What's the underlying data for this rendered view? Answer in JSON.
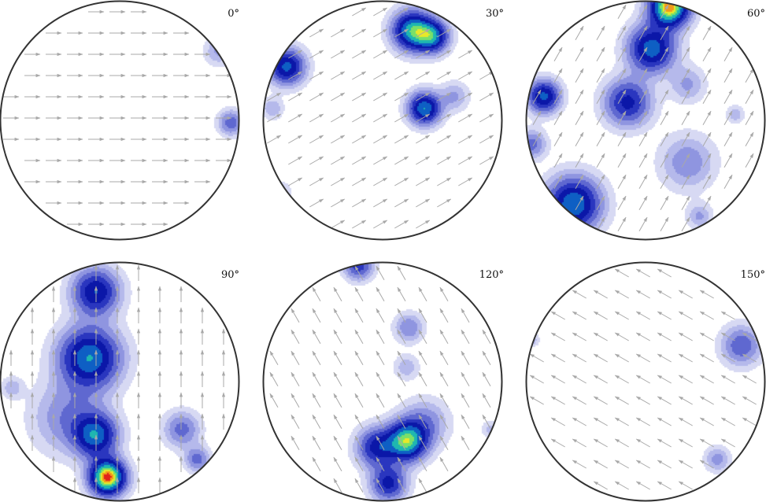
{
  "chart_data": {
    "type": "heatmap",
    "description_kind": "pole figure contour plots with arrow vector field, six rotation angles",
    "colormap": [
      "#ffffff",
      "#d7d9f3",
      "#b5b9eb",
      "#8f95e0",
      "#5f68d0",
      "#2a36bf",
      "#0b17a8",
      "#0e5fc4",
      "#1fb7b0",
      "#79e06a",
      "#e8e82a",
      "#f19a1b",
      "#e2231a"
    ],
    "arrow_color": "#a8a8a8",
    "circle_color": "#333333",
    "panels": [
      {
        "label": "0°",
        "arrow_angle_deg": 0,
        "blobs": [
          {
            "x": 0.93,
            "y": -0.02,
            "s": 0.07,
            "w": 0.38
          },
          {
            "x": 0.83,
            "y": 0.58,
            "s": 0.08,
            "w": 0.22
          }
        ]
      },
      {
        "label": "30°",
        "arrow_angle_deg": 30,
        "blobs": [
          {
            "x": 0.25,
            "y": 0.75,
            "s": 0.11,
            "w": 0.95
          },
          {
            "x": 0.42,
            "y": 0.7,
            "s": 0.09,
            "w": 0.75
          },
          {
            "x": -0.8,
            "y": 0.45,
            "s": 0.1,
            "w": 0.75
          },
          {
            "x": 0.35,
            "y": 0.1,
            "s": 0.09,
            "w": 0.85
          },
          {
            "x": 0.6,
            "y": 0.2,
            "s": 0.08,
            "w": 0.22
          },
          {
            "x": -0.92,
            "y": 0.1,
            "s": 0.06,
            "w": 0.2
          },
          {
            "x": -0.85,
            "y": -0.6,
            "s": 0.06,
            "w": 0.15
          }
        ]
      },
      {
        "label": "60°",
        "arrow_angle_deg": 60,
        "blobs": [
          {
            "x": 0.2,
            "y": 0.95,
            "s": 0.11,
            "w": 1.25
          },
          {
            "x": 0.05,
            "y": 0.6,
            "s": 0.13,
            "w": 0.8
          },
          {
            "x": -0.15,
            "y": 0.15,
            "s": 0.13,
            "w": 0.6
          },
          {
            "x": -0.6,
            "y": -0.7,
            "s": 0.15,
            "w": 0.85
          },
          {
            "x": -0.85,
            "y": 0.2,
            "s": 0.09,
            "w": 0.75
          },
          {
            "x": -0.95,
            "y": -0.2,
            "s": 0.08,
            "w": 0.35
          },
          {
            "x": 0.35,
            "y": -0.35,
            "s": 0.15,
            "w": 0.28
          },
          {
            "x": 0.35,
            "y": 0.3,
            "s": 0.1,
            "w": 0.22
          },
          {
            "x": 0.75,
            "y": 0.05,
            "s": 0.05,
            "w": 0.18
          },
          {
            "x": 0.45,
            "y": -0.8,
            "s": 0.07,
            "w": 0.22
          }
        ]
      },
      {
        "label": "90°",
        "arrow_angle_deg": 90,
        "blobs": [
          {
            "x": -0.1,
            "y": -0.8,
            "s": 0.1,
            "w": 1.3
          },
          {
            "x": -0.2,
            "y": -0.45,
            "s": 0.12,
            "w": 0.75
          },
          {
            "x": -0.25,
            "y": 0.2,
            "s": 0.17,
            "w": 0.85
          },
          {
            "x": -0.2,
            "y": 0.75,
            "s": 0.13,
            "w": 0.7
          },
          {
            "x": -0.42,
            "y": -0.3,
            "s": 0.2,
            "w": 0.3
          },
          {
            "x": 0.52,
            "y": -0.4,
            "s": 0.1,
            "w": 0.35
          },
          {
            "x": 0.65,
            "y": -0.65,
            "s": 0.07,
            "w": 0.35
          },
          {
            "x": -0.9,
            "y": -0.05,
            "s": 0.06,
            "w": 0.18
          }
        ]
      },
      {
        "label": "120°",
        "arrow_angle_deg": 120,
        "blobs": [
          {
            "x": 0.2,
            "y": -0.5,
            "s": 0.11,
            "w": 1.0
          },
          {
            "x": -0.05,
            "y": -0.55,
            "s": 0.11,
            "w": 0.6
          },
          {
            "x": 0.05,
            "y": -0.85,
            "s": 0.1,
            "w": 0.6
          },
          {
            "x": 0.35,
            "y": -0.35,
            "s": 0.13,
            "w": 0.3
          },
          {
            "x": 0.22,
            "y": 0.45,
            "s": 0.08,
            "w": 0.3
          },
          {
            "x": 0.2,
            "y": 0.12,
            "s": 0.07,
            "w": 0.18
          },
          {
            "x": -0.2,
            "y": 0.97,
            "s": 0.08,
            "w": 0.5
          },
          {
            "x": 0.9,
            "y": -0.4,
            "s": 0.05,
            "w": 0.15
          }
        ]
      },
      {
        "label": "150°",
        "arrow_angle_deg": 150,
        "blobs": [
          {
            "x": 0.8,
            "y": 0.3,
            "s": 0.11,
            "w": 0.4
          },
          {
            "x": 0.6,
            "y": -0.65,
            "s": 0.07,
            "w": 0.25
          },
          {
            "x": -0.95,
            "y": 0.35,
            "s": 0.04,
            "w": 0.18
          }
        ]
      }
    ]
  }
}
